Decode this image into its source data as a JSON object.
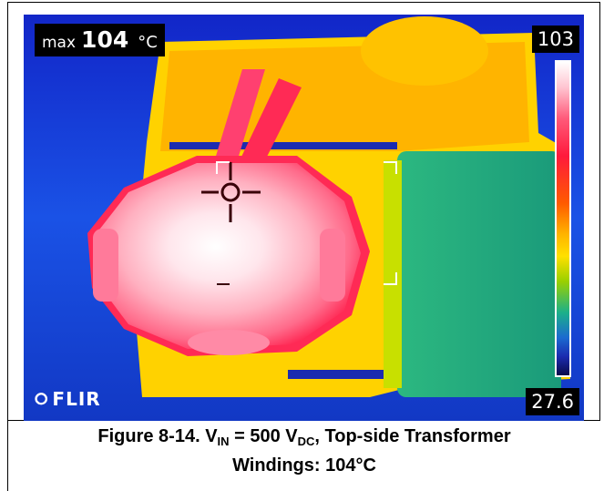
{
  "thermal_image": {
    "max_label": "max",
    "max_value": "104",
    "max_unit": "°C",
    "scale_max": "103",
    "scale_min": "27.6",
    "logo_text": "FLIR",
    "logo_icon": "flir-flame-icon"
  },
  "caption": {
    "figure_number": "Figure 8-14.",
    "v_symbol": "V",
    "v_sub": "IN",
    "equals": " = 500 ",
    "vdc_symbol": "V",
    "vdc_sub": "DC",
    "line1_rest": ", Top-side Transformer",
    "line2": "Windings: 104°C"
  },
  "colors": {
    "background_blue": "#1b3fd0",
    "hot_white": "#ffffff",
    "hot_pink": "#ff6a8a",
    "warm_orange": "#ffb000",
    "cool_green": "#20b07a"
  }
}
